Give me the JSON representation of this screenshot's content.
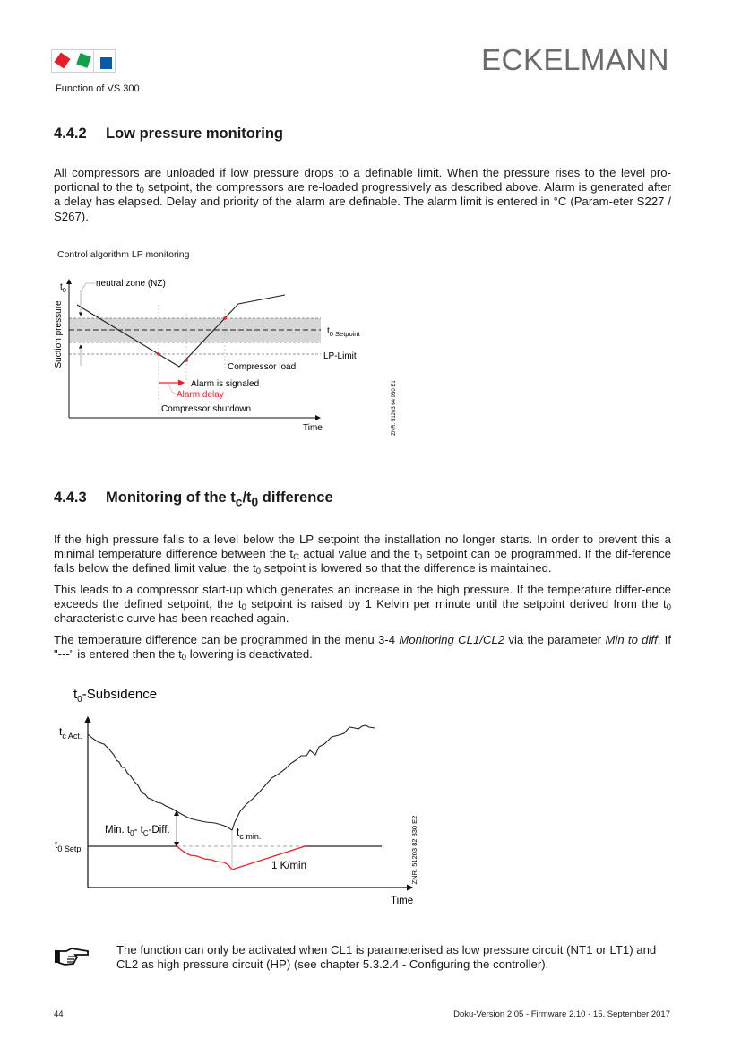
{
  "header": {
    "brand": "ECKELMANN",
    "running_head": "Function of VS 300",
    "logo_colors": [
      "#e3202a",
      "#12a04a",
      "#0b5aa8"
    ]
  },
  "sections": [
    {
      "number": "4.4.2",
      "title": [
        {
          "t": "Low pressure monitoring"
        }
      ],
      "paragraphs": [
        [
          {
            "t": "All compressors are unloaded if low pressure drops to a definable limit. When the pressure rises to the level pro-portional to the t"
          },
          {
            "sub": "0"
          },
          {
            "t": " setpoint, the compressors are re-loaded progressively as described above. Alarm is generated after a delay has elapsed. Delay and priority of the alarm are definable. The alarm limit is entered in °C (Param-eter S227 / S267)."
          }
        ]
      ]
    },
    {
      "number": "4.4.3",
      "title": [
        {
          "t": "Monitoring of the t"
        },
        {
          "sub": "c"
        },
        {
          "t": "/t"
        },
        {
          "sub": "0"
        },
        {
          "t": " difference"
        }
      ],
      "paragraphs": [
        [
          {
            "t": "If the high pressure falls to a level below the LP setpoint the installation no longer starts. In order to prevent this a minimal temperature difference between the t"
          },
          {
            "sub": "C"
          },
          {
            "t": " actual value and the t"
          },
          {
            "sub": "0"
          },
          {
            "t": " setpoint can be programmed. If the dif-ference falls below the defined limit value, the t"
          },
          {
            "sub": "0"
          },
          {
            "t": " setpoint is lowered so that the difference is maintained."
          }
        ],
        [
          {
            "t": "This leads to a compressor start-up which generates an increase in the high pressure. If the temperature differ-ence exceeds the defined setpoint, the t"
          },
          {
            "sub": "0"
          },
          {
            "t": " setpoint is raised by 1 Kelvin per minute until the setpoint derived from the t"
          },
          {
            "sub": "0"
          },
          {
            "t": " characteristic curve has been reached again."
          }
        ],
        [
          {
            "t": "The temperature difference can be programmed in the menu 3-4 "
          },
          {
            "em": "Monitoring CL1/CL2"
          },
          {
            "t": " via the parameter "
          },
          {
            "em": "Min to diff"
          },
          {
            "t": ". If \"---\" is entered then the t"
          },
          {
            "sub": "0"
          },
          {
            "t": " lowering is deactivated."
          }
        ]
      ]
    }
  ],
  "diagram1": {
    "caption": "Control algorithm LP monitoring",
    "y_label": "Suction pressure",
    "t": "t",
    "sub0": "0",
    "neutral_zone": "neutral zone (NZ)",
    "setpoint_sub": "0 Setpoint",
    "lp_limit": "LP-Limit",
    "compressor_load": "Compressor load",
    "alarm_signaled": "Alarm is signaled",
    "alarm_delay": "Alarm delay",
    "compressor_shutdown": "Compressor shutdown",
    "x_label": "Time",
    "ref": "ZNR. 51203 64 930 E1",
    "alarm_color": "#e8202a"
  },
  "diagram2": {
    "title_t": "t",
    "title_sub": "0",
    "title_rest": "-Subsidence",
    "tc_act_sub": "c Act.",
    "t0_setp_sub": "0 Setp.",
    "min_diff": {
      "a": "Min. t",
      "s1": "0",
      "b": "- t",
      "s2": "C",
      "c": "-Diff."
    },
    "tc_min_sub": "c min.",
    "rate": "1 K/min",
    "x_label": "Time",
    "ref": "ZNR. 51203 82 830 E2",
    "lowering_color": "#e8202a"
  },
  "note": {
    "icon": "pointing-hand-icon",
    "text": "The function can only be activated when CL1 is parameterised as low pressure circuit (NT1 or LT1) and CL2 as high pressure circuit (HP) (see chapter 5.3.2.4 - Configuring the controller)."
  },
  "footer": {
    "page_number": "44",
    "version": "Doku-Version 2.05 - Firmware 2.10 - 15. September 2017"
  }
}
